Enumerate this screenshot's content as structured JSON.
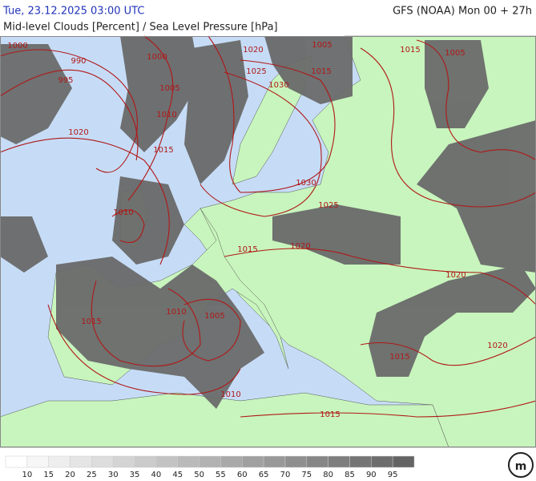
{
  "header": {
    "valid_time": "Tue, 23.12.2025 03:00 UTC",
    "model": "GFS (NOAA) Mon 00 + 27h",
    "subtitle": "Mid-level Clouds [Percent] / Sea Level Pressure [hPa]"
  },
  "isobar_labels": [
    1000,
    990,
    995,
    1000,
    1005,
    1010,
    1015,
    1020,
    1020,
    1025,
    1030,
    1005,
    1015,
    1015,
    1005,
    1030,
    1025,
    1010,
    1020,
    1015,
    1020,
    1010,
    1005,
    1015,
    1015,
    1020,
    1010,
    1015
  ],
  "legend": {
    "ticks": [
      10,
      15,
      20,
      25,
      30,
      35,
      40,
      45,
      50,
      55,
      60,
      65,
      70,
      75,
      80,
      85,
      90,
      95
    ]
  }
}
